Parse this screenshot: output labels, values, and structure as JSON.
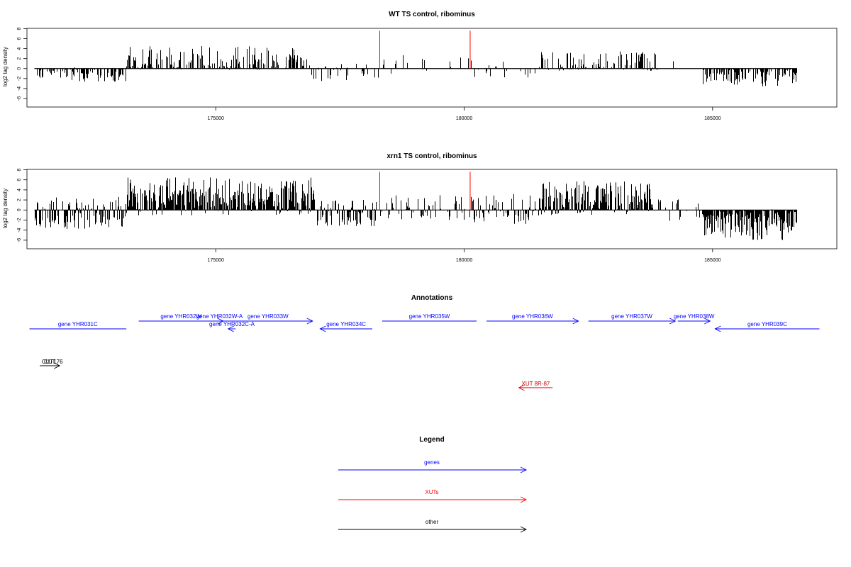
{
  "chart_data": [
    {
      "type": "bar",
      "title": "WT TS control, ribominus",
      "ylabel": "log2 tag density",
      "xlim": [
        171200,
        187500
      ],
      "ylim": [
        -7,
        8
      ],
      "yticks": [
        -6,
        -4,
        -2,
        0,
        2,
        4,
        6,
        8
      ],
      "xticks": [
        175000,
        180000,
        185000
      ],
      "regions": [
        {
          "start": 171350,
          "end": 173200,
          "min": -2.6,
          "max": 0.5,
          "density": 0.55,
          "seed": 11
        },
        {
          "start": 173200,
          "end": 176900,
          "min": -0.3,
          "max": 4.5,
          "density": 0.55,
          "seed": 12
        },
        {
          "start": 176900,
          "end": 178300,
          "min": -2.5,
          "max": 1.0,
          "density": 0.35,
          "seed": 13
        },
        {
          "start": 178300,
          "end": 180100,
          "min": -1.5,
          "max": 2.8,
          "density": 0.15,
          "seed": 14
        },
        {
          "start": 180100,
          "end": 181500,
          "min": -1.8,
          "max": 2.0,
          "density": 0.18,
          "seed": 15
        },
        {
          "start": 181500,
          "end": 183900,
          "min": -0.5,
          "max": 3.6,
          "density": 0.5,
          "seed": 16
        },
        {
          "start": 183900,
          "end": 184800,
          "min": -0.8,
          "max": 3.2,
          "density": 0.1,
          "seed": 17
        },
        {
          "start": 184800,
          "end": 186700,
          "min": -3.6,
          "max": 0.3,
          "density": 0.75,
          "seed": 18
        }
      ],
      "markers": [
        {
          "x": 178300,
          "y": 7.6,
          "color": "#ff0000"
        },
        {
          "x": 180120,
          "y": 7.6,
          "color": "#ff0000"
        }
      ]
    },
    {
      "type": "bar",
      "title": "xrn1 TS control, ribominus",
      "ylabel": "log2 tag density",
      "xlim": [
        171200,
        187500
      ],
      "ylim": [
        -7,
        8
      ],
      "yticks": [
        -6,
        -4,
        -2,
        0,
        2,
        4,
        6,
        8
      ],
      "xticks": [
        175000,
        180000,
        185000
      ],
      "regions": [
        {
          "start": 171350,
          "end": 173200,
          "min": -3.8,
          "max": 2.6,
          "density": 0.7,
          "seed": 21
        },
        {
          "start": 173200,
          "end": 177000,
          "min": -1.2,
          "max": 6.5,
          "density": 0.95,
          "seed": 22
        },
        {
          "start": 177000,
          "end": 178300,
          "min": -3.2,
          "max": 2.5,
          "density": 0.6,
          "seed": 23
        },
        {
          "start": 178300,
          "end": 180100,
          "min": -2.0,
          "max": 3.0,
          "density": 0.45,
          "seed": 24
        },
        {
          "start": 180100,
          "end": 181500,
          "min": -2.8,
          "max": 3.2,
          "density": 0.5,
          "seed": 25
        },
        {
          "start": 181500,
          "end": 183800,
          "min": -1.0,
          "max": 5.8,
          "density": 0.9,
          "seed": 26
        },
        {
          "start": 183800,
          "end": 184800,
          "min": -2.2,
          "max": 2.4,
          "density": 0.2,
          "seed": 27
        },
        {
          "start": 184800,
          "end": 186700,
          "min": -6.0,
          "max": 0.2,
          "density": 0.95,
          "seed": 28
        }
      ],
      "markers": [
        {
          "x": 178300,
          "y": 7.6,
          "color": "#ff0000"
        },
        {
          "x": 180120,
          "y": 7.6,
          "color": "#ff0000"
        }
      ]
    }
  ],
  "annotations": {
    "title": "Annotations",
    "xlim": [
      171200,
      187500
    ],
    "features": [
      {
        "label": "gene YHR031C",
        "start": 171250,
        "end": 173200,
        "strand": "-",
        "row": 1,
        "color": "#0000ff",
        "arrow": false
      },
      {
        "label": "gene YHR032W",
        "start": 173450,
        "end": 175150,
        "strand": "+",
        "row": 0,
        "color": "#0000ff",
        "arrow": false
      },
      {
        "label": "gene YHR032W-A",
        "start": 175000,
        "end": 175150,
        "strand": "+",
        "row": 0,
        "color": "#0000ff",
        "arrow": true
      },
      {
        "label": "gene YHR033W",
        "start": 175150,
        "end": 176950,
        "strand": "+",
        "row": 0,
        "color": "#0000ff",
        "arrow": true
      },
      {
        "label": "gene YHR032C-A",
        "start": 175250,
        "end": 175400,
        "strand": "-",
        "row": 1,
        "color": "#0000ff",
        "arrow": true
      },
      {
        "label": "gene YHR034C",
        "start": 177100,
        "end": 178150,
        "strand": "-",
        "row": 1,
        "color": "#0000ff",
        "arrow": true
      },
      {
        "label": "gene YHR035W",
        "start": 178350,
        "end": 180250,
        "strand": "+",
        "row": 0,
        "color": "#0000ff",
        "arrow": false
      },
      {
        "label": "gene YHR036W",
        "start": 180450,
        "end": 182300,
        "strand": "+",
        "row": 0,
        "color": "#0000ff",
        "arrow": true
      },
      {
        "label": "gene YHR037W",
        "start": 182500,
        "end": 184250,
        "strand": "+",
        "row": 0,
        "color": "#0000ff",
        "arrow": true
      },
      {
        "label": "gene YHR038W",
        "start": 184300,
        "end": 184950,
        "strand": "+",
        "row": 0,
        "color": "#0000ff",
        "arrow": true
      },
      {
        "label": "gene YHR039C",
        "start": 185050,
        "end": 187150,
        "strand": "-",
        "row": 1,
        "color": "#0000ff",
        "arrow": true
      },
      {
        "label": "CUT",
        "start": 171460,
        "end": 171860,
        "strand": "+",
        "row": 2,
        "color": "#000000",
        "arrow": false
      },
      {
        "label": "CUT176",
        "start": 171560,
        "end": 171860,
        "strand": "+",
        "row": 2,
        "color": "#000000",
        "arrow": true
      },
      {
        "label": "XUT 8R-87",
        "start": 181100,
        "end": 181780,
        "strand": "-",
        "row": 3,
        "color": "#cc0000",
        "arrow": true
      }
    ]
  },
  "legend": {
    "title": "Legend",
    "items": [
      {
        "label": "genes",
        "color": "#0000ff"
      },
      {
        "label": "XUTs",
        "color": "#ff0000"
      },
      {
        "label": "other",
        "color": "#000000"
      }
    ]
  }
}
